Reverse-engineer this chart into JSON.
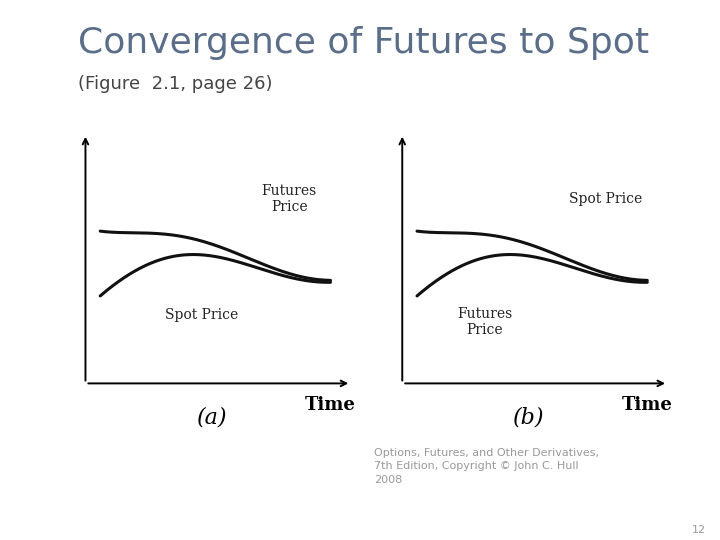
{
  "title": "Convergence of Futures to Spot",
  "subtitle": "(Figure  2.1, page 26)",
  "title_fontsize": 26,
  "subtitle_fontsize": 13,
  "title_color": "#5a6e8a",
  "subtitle_color": "#444444",
  "background_color": "#ffffff",
  "left_bar_color": "#adc5d5",
  "label_a": "(a)",
  "label_b": "(b)",
  "label_ab_fontsize": 16,
  "time_label": "Time",
  "time_fontsize": 13,
  "footnote": "Options, Futures, and Other Derivatives,\n7th Edition, Copyright © John C. Hull\n2008",
  "footnote_page": "12",
  "footnote_fontsize": 8,
  "curve_color": "#111111",
  "curve_lw": 2.2
}
